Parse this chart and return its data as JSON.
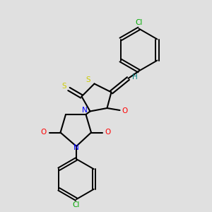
{
  "background_color": "#e0e0e0",
  "bond_color": "#000000",
  "atom_colors": {
    "N": "#0000ff",
    "O": "#ff0000",
    "S": "#cccc00",
    "Cl": "#00aa00",
    "H": "#008080",
    "C": "#000000"
  },
  "figsize": [
    3.0,
    3.0
  ],
  "dpi": 100,
  "xlim": [
    0,
    10
  ],
  "ylim": [
    0,
    10
  ]
}
